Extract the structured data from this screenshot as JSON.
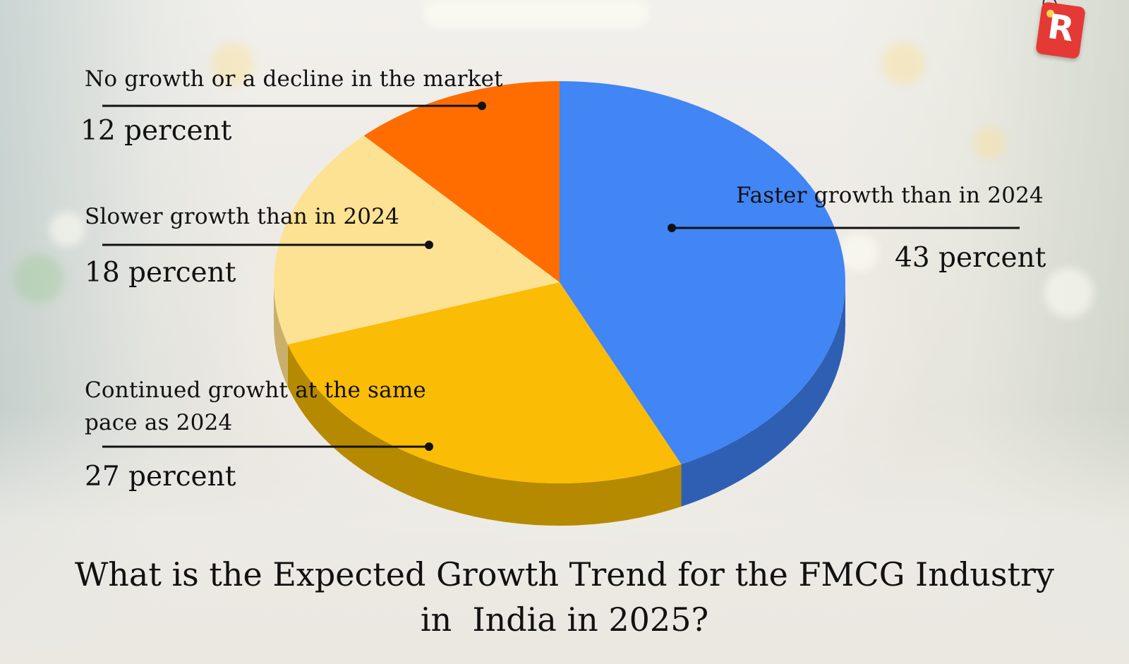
{
  "chart_data": {
    "type": "pie",
    "title": "What is the Expected Growth Trend for the FMCG Industry in  India in 2025?",
    "slices": [
      {
        "label": "Faster growth than in 2024",
        "value": 43,
        "value_label": "43 percent",
        "color": "#4285f4",
        "side_color": "#2f5fb3"
      },
      {
        "label": "Continued growht at the same pace as 2024",
        "value": 27,
        "value_label": "27 percent",
        "color": "#fbbc05",
        "side_color": "#b58a00"
      },
      {
        "label": "Slower growth than in 2024",
        "value": 18,
        "value_label": "18 percent",
        "color": "#fde293",
        "side_color": "#c9b06a"
      },
      {
        "label": "No growth or a decline in the market",
        "value": 12,
        "value_label": "12 percent",
        "color": "#ff6d01",
        "side_color": "#b84d00"
      }
    ]
  },
  "labels": {
    "nogrowth": {
      "category": "No growth or a decline in the market",
      "percent": "12 percent"
    },
    "slower": {
      "category": "Slower growth than in 2024",
      "percent": "18 percent"
    },
    "continued": {
      "category": "Continued growht at the same pace as 2024",
      "percent": "27 percent"
    },
    "faster": {
      "category": "Faster growth than in 2024",
      "percent": "43 percent"
    }
  },
  "title": {
    "line1": "What is the Expected Growth Trend for the FMCG Industry",
    "line2": "in  India in 2025?"
  },
  "logo": {
    "letter": "R",
    "color": "#e53935"
  }
}
